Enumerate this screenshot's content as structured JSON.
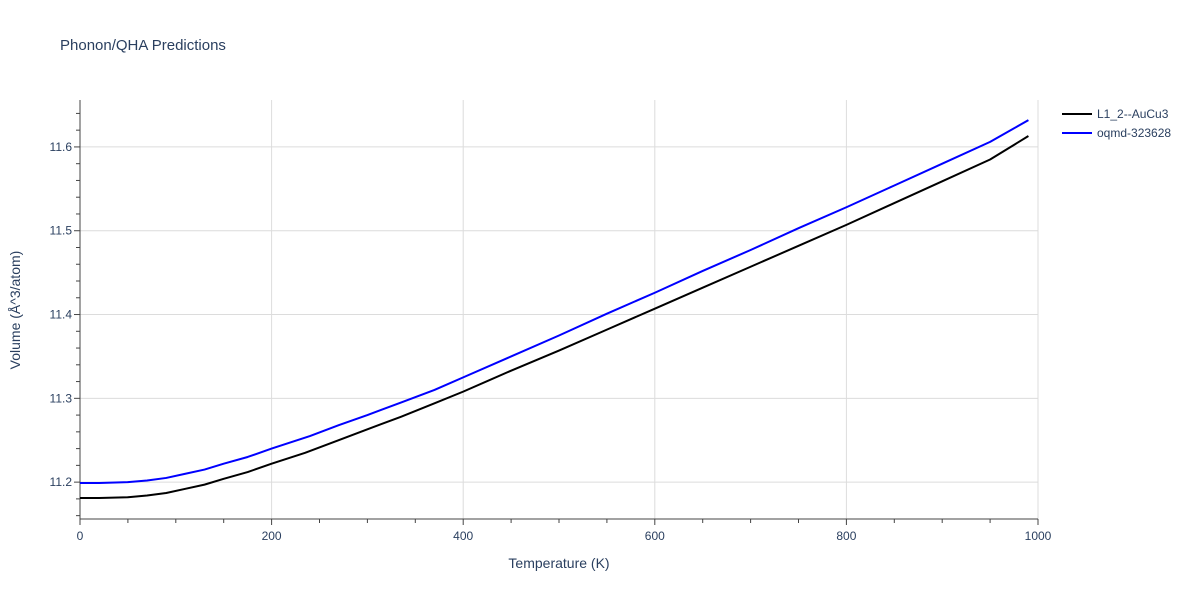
{
  "chart_data": {
    "type": "line",
    "title": "Phonon/QHA Predictions",
    "xlabel": "Temperature (K)",
    "ylabel": "Volume (Å^3/atom)",
    "xlim": [
      0,
      1000
    ],
    "ylim": [
      11.156,
      11.656
    ],
    "xticks": [
      0,
      200,
      400,
      600,
      800,
      1000
    ],
    "yticks": [
      11.2,
      11.3,
      11.4,
      11.5,
      11.6
    ],
    "x_tick_labels": [
      "0",
      "200",
      "400",
      "600",
      "800",
      "1000"
    ],
    "y_tick_labels": [
      "11.2",
      "11.3",
      "11.4",
      "11.5",
      "11.6"
    ],
    "grid": true,
    "legend_position": "top-right",
    "series": [
      {
        "name": "L1_2--AuCu3",
        "color": "#000000",
        "x": [
          0,
          20,
          50,
          70,
          90,
          110,
          130,
          150,
          175,
          200,
          235,
          270,
          300,
          335,
          370,
          400,
          450,
          500,
          550,
          600,
          650,
          700,
          750,
          800,
          850,
          900,
          950,
          990
        ],
        "y": [
          11.181,
          11.181,
          11.182,
          11.184,
          11.187,
          11.192,
          11.197,
          11.204,
          11.212,
          11.222,
          11.235,
          11.25,
          11.263,
          11.278,
          11.294,
          11.308,
          11.333,
          11.357,
          11.382,
          11.407,
          11.432,
          11.457,
          11.482,
          11.507,
          11.533,
          11.559,
          11.585,
          11.613
        ]
      },
      {
        "name": "oqmd-323628",
        "color": "#0000ff",
        "x": [
          0,
          20,
          50,
          70,
          90,
          110,
          130,
          150,
          175,
          200,
          240,
          270,
          300,
          335,
          370,
          400,
          450,
          500,
          550,
          600,
          650,
          700,
          750,
          800,
          850,
          900,
          950,
          990
        ],
        "y": [
          11.199,
          11.199,
          11.2,
          11.202,
          11.205,
          11.21,
          11.215,
          11.222,
          11.23,
          11.24,
          11.255,
          11.268,
          11.28,
          11.295,
          11.31,
          11.325,
          11.35,
          11.375,
          11.401,
          11.426,
          11.452,
          11.477,
          11.503,
          11.528,
          11.554,
          11.58,
          11.606,
          11.632
        ]
      }
    ]
  }
}
